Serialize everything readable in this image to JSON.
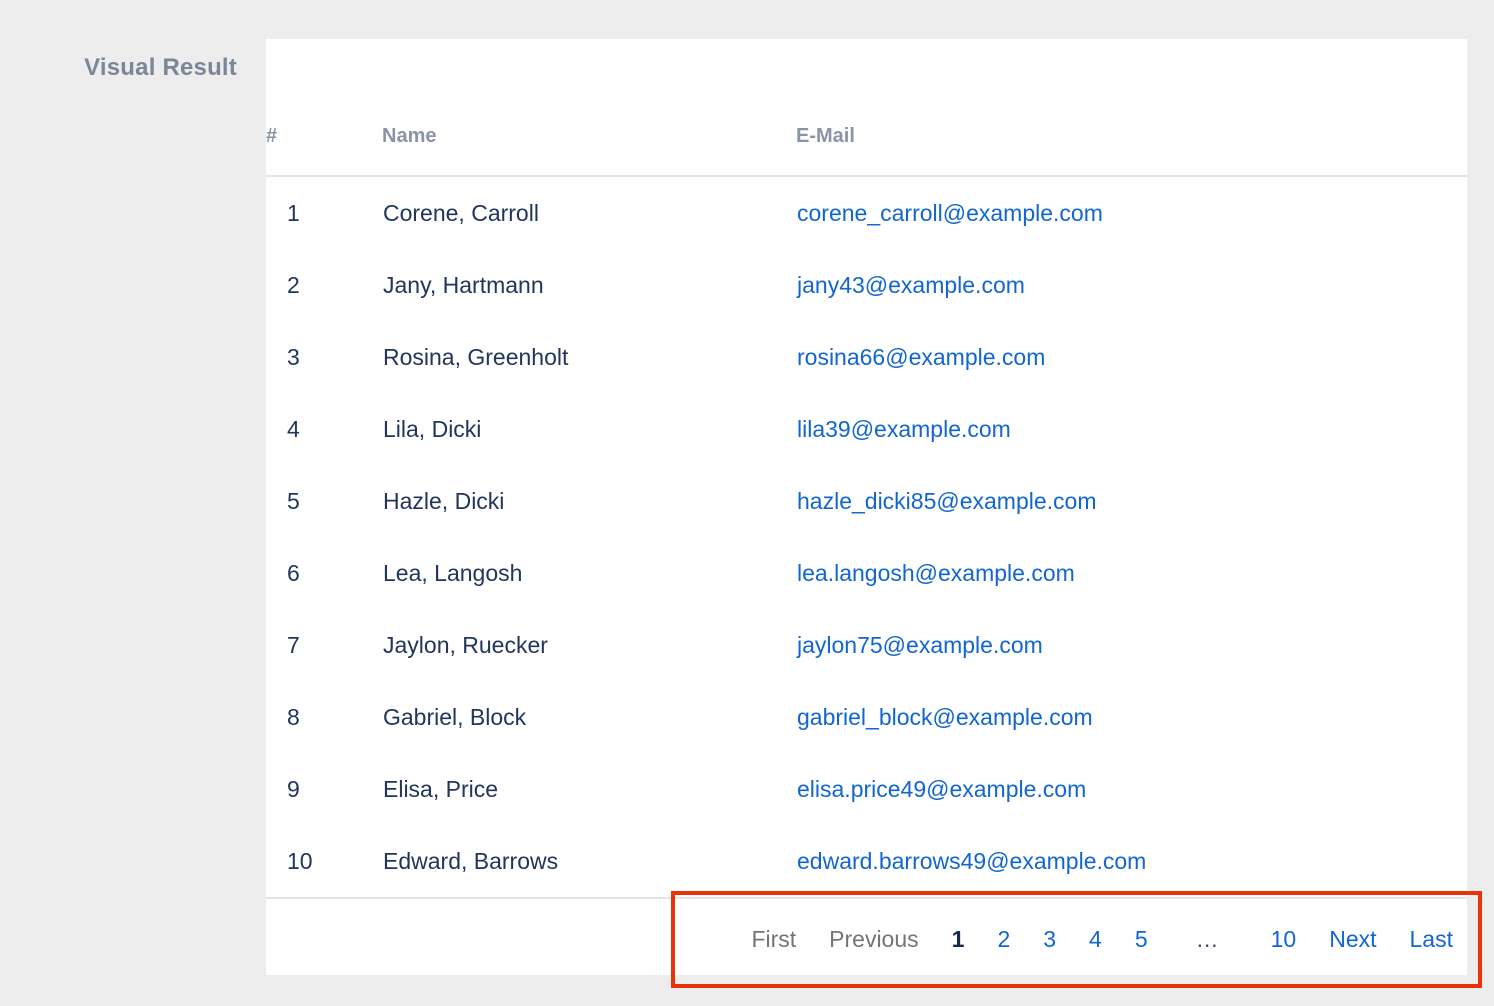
{
  "sidebar_label": "Visual Result",
  "table": {
    "columns": [
      "#",
      "Name",
      "E-Mail"
    ],
    "rows": [
      {
        "num": "1",
        "name": "Corene, Carroll",
        "email": "corene_carroll@example.com"
      },
      {
        "num": "2",
        "name": "Jany, Hartmann",
        "email": "jany43@example.com"
      },
      {
        "num": "3",
        "name": "Rosina, Greenholt",
        "email": "rosina66@example.com"
      },
      {
        "num": "4",
        "name": "Lila, Dicki",
        "email": "lila39@example.com"
      },
      {
        "num": "5",
        "name": "Hazle, Dicki",
        "email": "hazle_dicki85@example.com"
      },
      {
        "num": "6",
        "name": "Lea, Langosh",
        "email": "lea.langosh@example.com"
      },
      {
        "num": "7",
        "name": "Jaylon, Ruecker",
        "email": "jaylon75@example.com"
      },
      {
        "num": "8",
        "name": "Gabriel, Block",
        "email": "gabriel_block@example.com"
      },
      {
        "num": "9",
        "name": "Elisa, Price",
        "email": "elisa.price49@example.com"
      },
      {
        "num": "10",
        "name": "Edward, Barrows",
        "email": "edward.barrows49@example.com"
      }
    ]
  },
  "pagination": {
    "items": [
      {
        "label": "First",
        "type": "disabled"
      },
      {
        "label": "Previous",
        "type": "disabled"
      },
      {
        "label": "1",
        "type": "active"
      },
      {
        "label": "2",
        "type": "link"
      },
      {
        "label": "3",
        "type": "link"
      },
      {
        "label": "4",
        "type": "link"
      },
      {
        "label": "5",
        "type": "link"
      },
      {
        "label": "…",
        "type": "ellipsis"
      },
      {
        "label": "10",
        "type": "link"
      },
      {
        "label": "Next",
        "type": "link"
      },
      {
        "label": "Last",
        "type": "link"
      }
    ]
  },
  "colors": {
    "page_background": "#eeedee",
    "link_blue": "#1266cf",
    "row_text": "#22355a",
    "header_text": "#8a94a6",
    "disabled_gray": "#747474",
    "active_page": "#17294e",
    "highlight_box": "#e8340c"
  }
}
